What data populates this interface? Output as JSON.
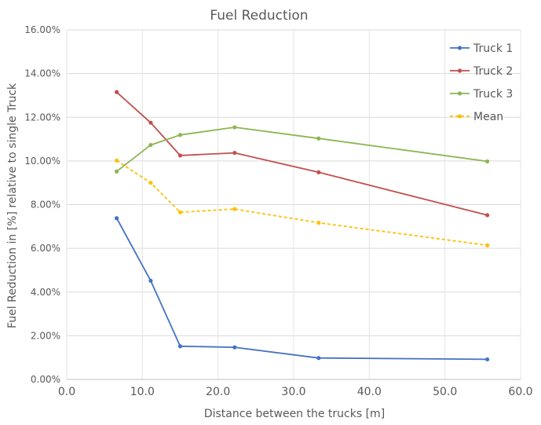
{
  "chart_data": {
    "type": "line",
    "title": "Fuel Reduction",
    "xlabel": "Distance between the trucks [m]",
    "ylabel": "Fuel Reduction in [%] relative to single Truck",
    "xlim": [
      0,
      60
    ],
    "ylim": [
      0,
      16
    ],
    "x_ticks": [
      "0.0",
      "10.0",
      "20.0",
      "30.0",
      "40.0",
      "50.0",
      "60.0"
    ],
    "y_ticks": [
      "0.00%",
      "2.00%",
      "4.00%",
      "6.00%",
      "8.00%",
      "10.00%",
      "12.00%",
      "14.00%",
      "16.00%"
    ],
    "grid": true,
    "legend_position": "top-right",
    "series": [
      {
        "name": "Truck 1",
        "color": "#4472C4",
        "dashed": false,
        "x": [
          6.6,
          11.1,
          15.0,
          22.2,
          33.3,
          55.6
        ],
        "y": [
          7.38,
          4.52,
          1.52,
          1.47,
          0.98,
          0.92
        ]
      },
      {
        "name": "Truck 2",
        "color": "#C0504D",
        "dashed": false,
        "x": [
          6.6,
          11.1,
          15.0,
          22.2,
          33.3,
          55.6
        ],
        "y": [
          13.15,
          11.75,
          10.25,
          10.37,
          9.48,
          7.52
        ]
      },
      {
        "name": "Truck 3",
        "color": "#8DB552",
        "dashed": false,
        "x": [
          6.6,
          11.1,
          15.0,
          22.2,
          33.3,
          55.6
        ],
        "y": [
          9.52,
          10.73,
          11.19,
          11.54,
          11.03,
          9.98
        ]
      },
      {
        "name": "Mean",
        "color": "#FFC000",
        "dashed": true,
        "x": [
          6.6,
          11.1,
          15.0,
          22.2,
          33.3,
          55.6
        ],
        "y": [
          10.02,
          9.0,
          7.65,
          7.8,
          7.17,
          6.14
        ]
      }
    ]
  }
}
